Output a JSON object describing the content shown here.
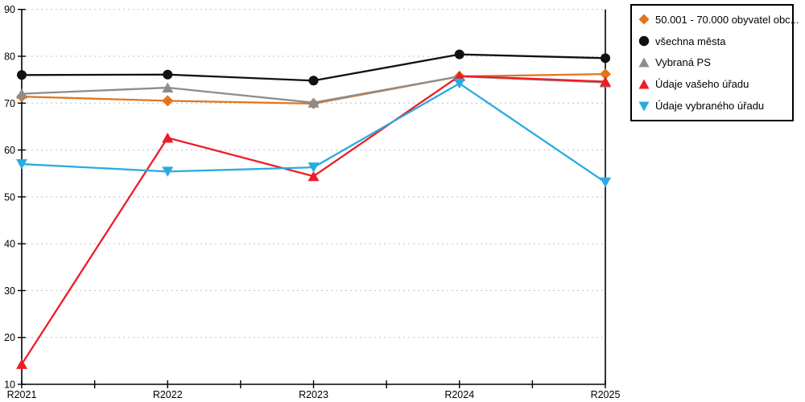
{
  "chart_data": {
    "type": "line",
    "title": "",
    "xlabel": "",
    "ylabel": "",
    "x_labels": [
      "R2021",
      "R2022",
      "R2023",
      "R2024",
      "R2025"
    ],
    "ylim": [
      10,
      90
    ],
    "y_ticks": [
      10,
      20,
      30,
      40,
      50,
      60,
      70,
      80,
      90
    ],
    "grid": "horizontal-dotted",
    "legend_position": "top-right",
    "grid_color": "#C0C0C0",
    "axis_color": "#000000",
    "series": [
      {
        "name": "50.001 - 70.000 obyvatel obc...",
        "marker": "diamond",
        "color": "#E2751D",
        "values": [
          71.4,
          70.5,
          69.9,
          75.7,
          76.2
        ]
      },
      {
        "name": "všechna města",
        "marker": "circle",
        "color": "#111111",
        "values": [
          76.0,
          76.1,
          74.8,
          80.4,
          79.6
        ]
      },
      {
        "name": "Vybraná PS",
        "marker": "triangle-up",
        "color": "#8C8C8C",
        "values": [
          72.0,
          73.3,
          70.1,
          75.7,
          74.4
        ]
      },
      {
        "name": "Údaje vašeho úřadu",
        "marker": "triangle-up",
        "color": "#EE1C25",
        "values": [
          14.3,
          62.6,
          54.4,
          75.8,
          74.6
        ]
      },
      {
        "name": "Údaje vybraného úřadu",
        "marker": "triangle-down",
        "color": "#29ABE2",
        "values": [
          57.0,
          55.4,
          56.3,
          74.2,
          53.1
        ]
      }
    ]
  }
}
